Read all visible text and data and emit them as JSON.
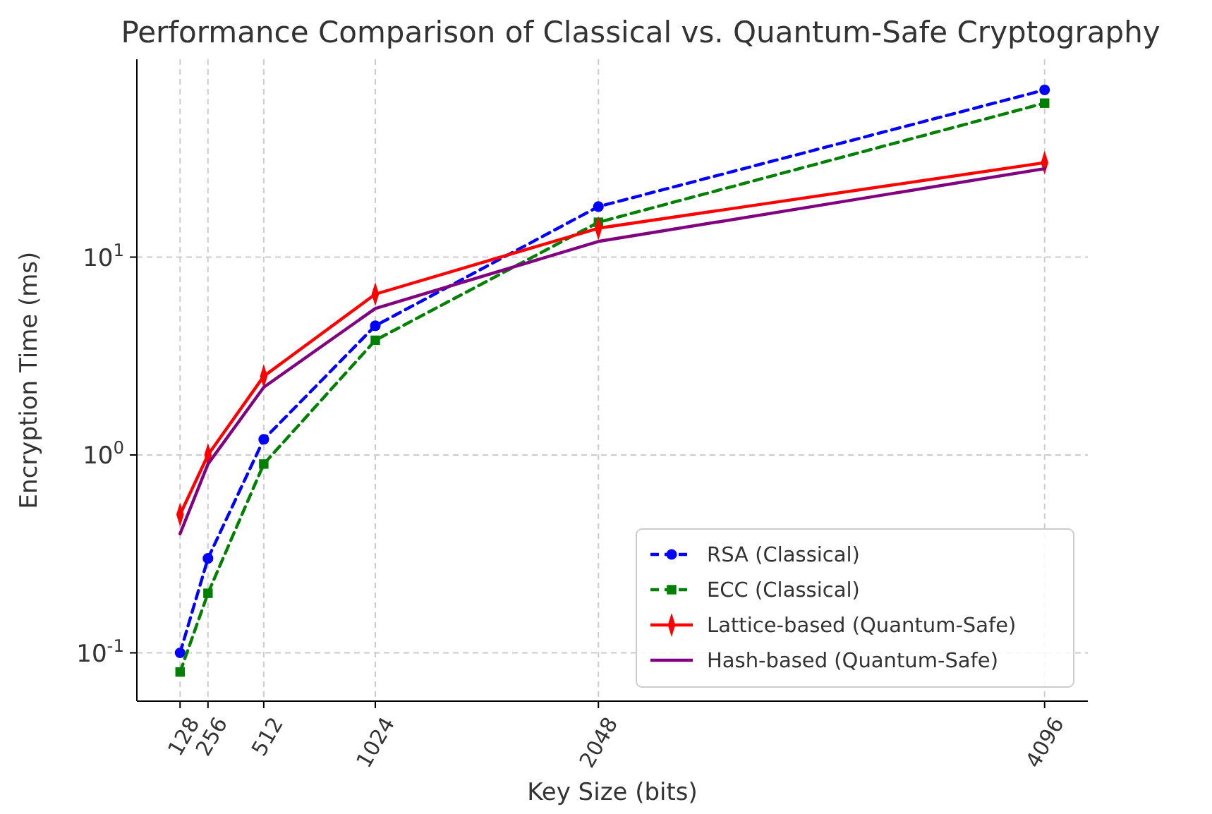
{
  "chart_data": {
    "type": "line",
    "title": "Performance Comparison of Classical vs. Quantum-Safe Cryptography",
    "xlabel": "Key Size (bits)",
    "ylabel": "Encryption Time (ms)",
    "x": [
      128,
      256,
      512,
      1024,
      2048,
      4096
    ],
    "series": [
      {
        "name": "RSA (Classical)",
        "color": "#0000ff",
        "marker": "circle",
        "line_style": "dashed",
        "values": [
          0.1,
          0.3,
          1.2,
          4.5,
          18,
          70
        ]
      },
      {
        "name": "ECC (Classical)",
        "color": "#008000",
        "marker": "square",
        "line_style": "dashed",
        "values": [
          0.08,
          0.2,
          0.9,
          3.8,
          15,
          60
        ]
      },
      {
        "name": "Lattice-based (Quantum-Safe)",
        "color": "#ff0000",
        "marker": "diamond",
        "line_style": "solid",
        "values": [
          0.5,
          1.0,
          2.5,
          6.5,
          14,
          30
        ]
      },
      {
        "name": "Hash-based (Quantum-Safe)",
        "color": "#800080",
        "marker": "none",
        "line_style": "solid",
        "values": [
          0.4,
          0.9,
          2.2,
          5.5,
          12,
          28
        ]
      }
    ],
    "xlim": [
      -70.4,
      4294.4
    ],
    "xticks": [
      128,
      256,
      512,
      1024,
      2048,
      4096
    ],
    "ylim": [
      0.057,
      100
    ],
    "yticks": [
      {
        "value": 0.1,
        "label": "10$^{-1}$"
      },
      {
        "value": 1,
        "label": "10$^{0}$"
      },
      {
        "value": 10,
        "label": "10$^{1}$"
      }
    ],
    "log": "y",
    "grid": true,
    "legend": "bottom right"
  }
}
